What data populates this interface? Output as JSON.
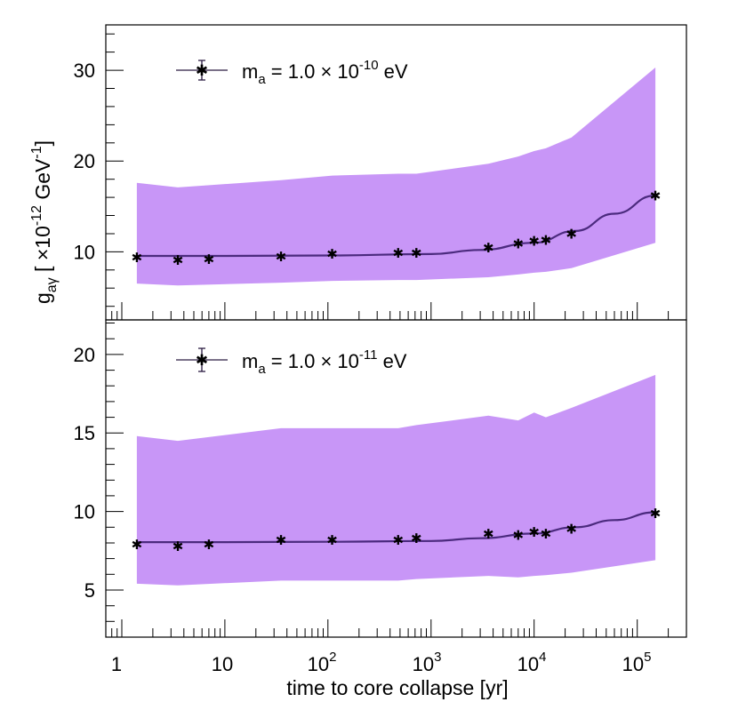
{
  "colors": {
    "band": "#c896f7",
    "line": "#4b2a7e",
    "marker": "#2a1a40",
    "axis": "#000000"
  },
  "chart_data": {
    "type": "line",
    "shared_x_axis": {
      "label": "time to core collapse [yr]",
      "scale": "log",
      "range": [
        0.7,
        300000
      ],
      "tick_labels": [
        {
          "value": 1,
          "base": "1",
          "exp": ""
        },
        {
          "value": 10,
          "base": "10",
          "exp": ""
        },
        {
          "value": 100,
          "base": "10",
          "exp": "2"
        },
        {
          "value": 1000,
          "base": "10",
          "exp": "3"
        },
        {
          "value": 10000,
          "base": "10",
          "exp": "4"
        },
        {
          "value": 100000,
          "base": "10",
          "exp": "5"
        }
      ]
    },
    "shared_y_label": {
      "symbol": "g",
      "subscript": "aγ",
      "bracket_open": " [ ×10",
      "exp": "-12",
      "unit": " GeV",
      "unit_exp": "-1",
      "bracket_close": "]"
    },
    "panels": [
      {
        "id": "top",
        "legend": {
          "prefix": "m",
          "sub": "a",
          "eq": " = 1.0 × 10",
          "exp": "-10",
          "unit": " eV"
        },
        "ylim": [
          2.5,
          35
        ],
        "y_ticks": [
          10,
          20,
          30
        ],
        "y_tick_labels": [
          "10",
          "20",
          "30"
        ],
        "x": [
          1.4,
          3.5,
          7,
          35,
          110,
          480,
          720,
          3600,
          7000,
          10000,
          13000,
          23000,
          150000
        ],
        "points": [
          9.4,
          9.1,
          9.2,
          9.5,
          9.8,
          9.9,
          9.9,
          10.5,
          10.9,
          11.2,
          11.3,
          12.0,
          16.2
        ],
        "fit_x": [
          1.4,
          10,
          100,
          1000,
          3000,
          10000,
          25000,
          60000,
          150000
        ],
        "fit": [
          9.55,
          9.55,
          9.6,
          9.75,
          10.2,
          11.0,
          12.3,
          14.2,
          16.2
        ],
        "band_x": [
          1.4,
          3.5,
          35,
          110,
          480,
          720,
          3600,
          7000,
          10000,
          13000,
          23000,
          150000
        ],
        "band_upper": [
          17.6,
          17.1,
          17.9,
          18.4,
          18.6,
          18.6,
          19.7,
          20.5,
          21.1,
          21.4,
          22.6,
          30.3
        ],
        "band_lower": [
          6.5,
          6.3,
          6.6,
          6.8,
          6.9,
          6.9,
          7.2,
          7.5,
          7.7,
          7.8,
          8.2,
          11.0
        ]
      },
      {
        "id": "bottom",
        "legend": {
          "prefix": "m",
          "sub": "a",
          "eq": " = 1.0 × 10",
          "exp": "-11",
          "unit": " eV"
        },
        "ylim": [
          2,
          22.2
        ],
        "y_ticks": [
          5,
          10,
          15,
          20
        ],
        "y_tick_labels": [
          "5",
          "10",
          "15",
          "20"
        ],
        "x": [
          1.4,
          3.5,
          7,
          35,
          110,
          480,
          720,
          3600,
          7000,
          10000,
          13000,
          23000,
          150000
        ],
        "points": [
          7.9,
          7.8,
          7.9,
          8.2,
          8.2,
          8.2,
          8.3,
          8.6,
          8.5,
          8.7,
          8.6,
          8.9,
          9.9
        ],
        "fit_x": [
          1.4,
          10,
          100,
          1000,
          3000,
          10000,
          25000,
          60000,
          150000
        ],
        "fit": [
          8.05,
          8.05,
          8.07,
          8.12,
          8.3,
          8.6,
          9.0,
          9.45,
          9.95
        ],
        "band_x": [
          1.4,
          3.5,
          35,
          110,
          480,
          720,
          3600,
          7000,
          10000,
          13000,
          23000,
          150000
        ],
        "band_upper": [
          14.8,
          14.5,
          15.3,
          15.3,
          15.3,
          15.5,
          16.1,
          15.8,
          16.3,
          16.0,
          16.6,
          18.7
        ],
        "band_lower": [
          5.4,
          5.3,
          5.6,
          5.6,
          5.6,
          5.7,
          5.9,
          5.8,
          5.9,
          5.95,
          6.1,
          6.9
        ]
      }
    ]
  }
}
